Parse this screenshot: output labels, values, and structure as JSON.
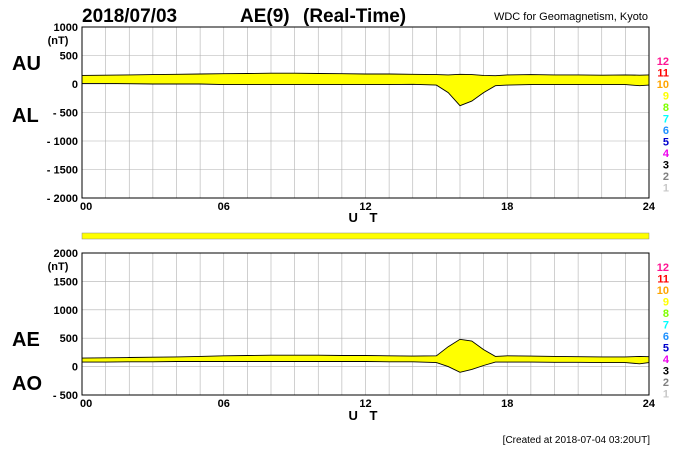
{
  "header": {
    "date": "2018/07/03",
    "index": "AE(9)",
    "mode": "(Real-Time)",
    "source": "WDC for Geomagnetism, Kyoto"
  },
  "footer": {
    "created": "[Created at 2018-07-04 03:20UT]"
  },
  "colors": {
    "fill": "#ffff00",
    "line": "#000000",
    "grid": "#b0b0b0"
  },
  "station_labels": [
    {
      "text": "12",
      "color": "#ff1493"
    },
    {
      "text": "11",
      "color": "#ff0000"
    },
    {
      "text": "10",
      "color": "#ffa500"
    },
    {
      "text": "9",
      "color": "#ffff00"
    },
    {
      "text": "8",
      "color": "#7fff00"
    },
    {
      "text": "7",
      "color": "#00ffff"
    },
    {
      "text": "6",
      "color": "#1e90ff"
    },
    {
      "text": "5",
      "color": "#0000cd"
    },
    {
      "text": "4",
      "color": "#ee00ee"
    },
    {
      "text": "3",
      "color": "#000000"
    },
    {
      "text": "2",
      "color": "#808080"
    },
    {
      "text": "1",
      "color": "#c8c8c8"
    }
  ],
  "chart_data": [
    {
      "type": "area",
      "name": "AU/AL",
      "label_upper": "AU",
      "label_lower": "AL",
      "unit": "(nT)",
      "xlabel": "U T",
      "xlim": [
        0,
        24
      ],
      "ylim": [
        -2000,
        1000
      ],
      "x_ticks": [
        "00",
        "06",
        "12",
        "18",
        "24"
      ],
      "y_ticks": [
        "1000",
        "500",
        "0",
        "- 500",
        "- 1000",
        "- 1500",
        "- 2000"
      ],
      "grid": true,
      "series": [
        {
          "name": "AU",
          "x": [
            0,
            1,
            2,
            3,
            4,
            5,
            6,
            7,
            8,
            9,
            10,
            11,
            12,
            13,
            14,
            15,
            15.5,
            16,
            16.5,
            17,
            17.5,
            18,
            19,
            20,
            21,
            22,
            23,
            23.6,
            24
          ],
          "values": [
            150,
            155,
            160,
            165,
            170,
            175,
            180,
            185,
            190,
            190,
            185,
            180,
            175,
            175,
            170,
            165,
            160,
            170,
            165,
            150,
            145,
            160,
            165,
            160,
            160,
            155,
            160,
            155,
            160
          ]
        },
        {
          "name": "AL",
          "x": [
            0,
            1,
            2,
            3,
            4,
            5,
            6,
            7,
            8,
            9,
            10,
            11,
            12,
            13,
            14,
            15,
            15.5,
            16,
            16.5,
            17,
            17.5,
            18,
            19,
            20,
            21,
            22,
            23,
            23.6,
            24
          ],
          "values": [
            10,
            10,
            5,
            0,
            0,
            0,
            -10,
            -10,
            -10,
            -10,
            -10,
            -10,
            -10,
            -10,
            -5,
            -20,
            -150,
            -380,
            -300,
            -150,
            -30,
            -20,
            -10,
            -10,
            -10,
            -10,
            -10,
            -30,
            -20
          ]
        }
      ]
    },
    {
      "type": "area",
      "name": "AE/AO",
      "label_upper": "AE",
      "label_lower": "AO",
      "unit": "(nT)",
      "xlabel": "U T",
      "xlim": [
        0,
        24
      ],
      "ylim": [
        -500,
        2000
      ],
      "x_ticks": [
        "00",
        "06",
        "12",
        "18",
        "24"
      ],
      "y_ticks": [
        "2000",
        "1500",
        "1000",
        "500",
        "0",
        "- 500"
      ],
      "grid": true,
      "series": [
        {
          "name": "AE",
          "x": [
            0,
            1,
            2,
            3,
            4,
            5,
            6,
            7,
            8,
            9,
            10,
            11,
            12,
            13,
            14,
            15,
            15.5,
            16,
            16.5,
            17,
            17.5,
            18,
            19,
            20,
            21,
            22,
            23,
            23.6,
            24
          ],
          "values": [
            150,
            155,
            160,
            165,
            170,
            180,
            190,
            195,
            200,
            200,
            200,
            195,
            195,
            190,
            185,
            190,
            350,
            480,
            450,
            300,
            180,
            190,
            185,
            180,
            175,
            170,
            170,
            180,
            175
          ]
        },
        {
          "name": "AO",
          "x": [
            0,
            1,
            2,
            3,
            4,
            5,
            6,
            7,
            8,
            9,
            10,
            11,
            12,
            13,
            14,
            15,
            15.5,
            16,
            16.5,
            17,
            17.5,
            18,
            19,
            20,
            21,
            22,
            23,
            23.6,
            24
          ],
          "values": [
            80,
            80,
            85,
            85,
            90,
            90,
            90,
            90,
            90,
            90,
            90,
            90,
            90,
            85,
            85,
            70,
            0,
            -100,
            -50,
            20,
            80,
            80,
            80,
            75,
            75,
            70,
            70,
            50,
            70
          ]
        }
      ]
    }
  ]
}
